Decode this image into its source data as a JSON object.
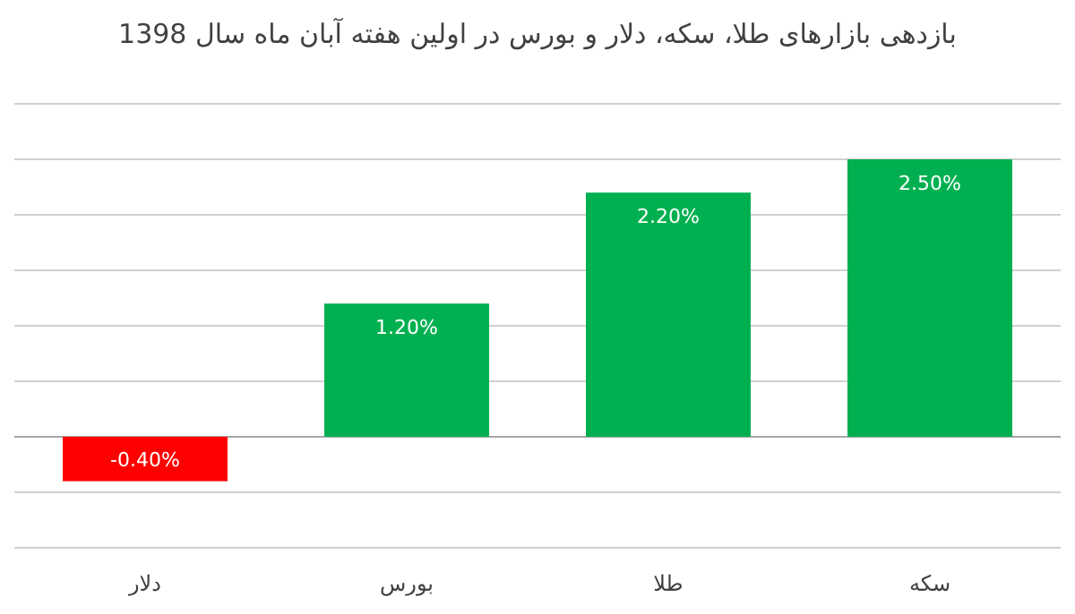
{
  "chart_data": {
    "type": "bar",
    "title": "بازدهی بازارهای طلا، سکه، دلار و بورس در اولین هفته آبان ماه سال 1398",
    "categories": [
      "دلار",
      "بورس",
      "طلا",
      "سکه"
    ],
    "values": [
      -0.4,
      1.2,
      2.2,
      2.5
    ],
    "colors": [
      "#ff0000",
      "#00b050",
      "#00b050",
      "#00b050"
    ],
    "value_labels": [
      "-0.40%",
      "1.20%",
      "2.20%",
      "2.50%"
    ],
    "ylim": [
      -1,
      3
    ],
    "yticks": [
      {
        "value": -1,
        "label": null
      },
      {
        "value": -0.5,
        "label": null
      },
      {
        "value": 0,
        "label": null
      },
      {
        "value": 0.5,
        "label": null
      },
      {
        "value": 1,
        "label": null
      },
      {
        "value": 1.5,
        "label": null
      },
      {
        "value": 2,
        "label": null
      },
      {
        "value": 2.5,
        "label": null
      },
      {
        "value": 3,
        "label": null
      }
    ],
    "grid": "y",
    "tick_labels": "x"
  }
}
